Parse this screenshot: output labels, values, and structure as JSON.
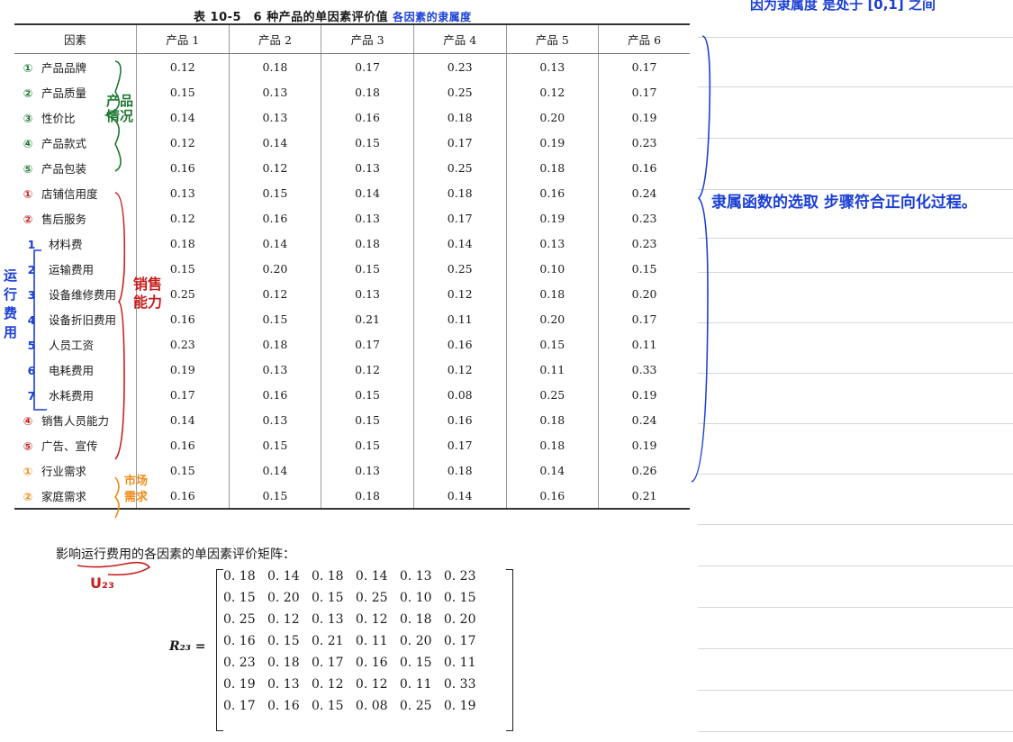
{
  "caption": "表 10-5　6 种产品的单因素评价值",
  "table": {
    "headers": [
      "因素",
      "产品 1",
      "产品 2",
      "产品 3",
      "产品 4",
      "产品 5",
      "产品 6"
    ],
    "rows": [
      {
        "factor": "产品品牌",
        "values": [
          "0.12",
          "0.18",
          "0.17",
          "0.23",
          "0.13",
          "0.17"
        ]
      },
      {
        "factor": "产品质量",
        "values": [
          "0.15",
          "0.13",
          "0.18",
          "0.25",
          "0.12",
          "0.17"
        ]
      },
      {
        "factor": "性价比",
        "values": [
          "0.14",
          "0.13",
          "0.16",
          "0.18",
          "0.20",
          "0.19"
        ]
      },
      {
        "factor": "产品款式",
        "values": [
          "0.12",
          "0.14",
          "0.15",
          "0.17",
          "0.19",
          "0.23"
        ]
      },
      {
        "factor": "产品包装",
        "values": [
          "0.16",
          "0.12",
          "0.13",
          "0.25",
          "0.18",
          "0.16"
        ]
      },
      {
        "factor": "店铺信用度",
        "values": [
          "0.13",
          "0.15",
          "0.14",
          "0.18",
          "0.16",
          "0.24"
        ]
      },
      {
        "factor": "售后服务",
        "values": [
          "0.12",
          "0.16",
          "0.13",
          "0.17",
          "0.19",
          "0.23"
        ]
      },
      {
        "factor": "材料费",
        "values": [
          "0.18",
          "0.14",
          "0.18",
          "0.14",
          "0.13",
          "0.23"
        ]
      },
      {
        "factor": "运输费用",
        "values": [
          "0.15",
          "0.20",
          "0.15",
          "0.25",
          "0.10",
          "0.15"
        ]
      },
      {
        "factor": "设备维修费用",
        "values": [
          "0.25",
          "0.12",
          "0.13",
          "0.12",
          "0.18",
          "0.20"
        ]
      },
      {
        "factor": "设备折旧费用",
        "values": [
          "0.16",
          "0.15",
          "0.21",
          "0.11",
          "0.20",
          "0.17"
        ]
      },
      {
        "factor": "人员工资",
        "values": [
          "0.23",
          "0.18",
          "0.17",
          "0.16",
          "0.15",
          "0.11"
        ]
      },
      {
        "factor": "电耗费用",
        "values": [
          "0.19",
          "0.13",
          "0.12",
          "0.12",
          "0.11",
          "0.33"
        ]
      },
      {
        "factor": "水耗费用",
        "values": [
          "0.17",
          "0.16",
          "0.15",
          "0.08",
          "0.25",
          "0.19"
        ]
      },
      {
        "factor": "销售人员能力",
        "values": [
          "0.14",
          "0.13",
          "0.15",
          "0.16",
          "0.18",
          "0.24"
        ]
      },
      {
        "factor": "广告、宣传",
        "values": [
          "0.16",
          "0.15",
          "0.15",
          "0.17",
          "0.18",
          "0.19"
        ]
      },
      {
        "factor": "行业需求",
        "values": [
          "0.15",
          "0.14",
          "0.13",
          "0.18",
          "0.14",
          "0.26"
        ]
      },
      {
        "factor": "家庭需求",
        "values": [
          "0.16",
          "0.15",
          "0.18",
          "0.14",
          "0.16",
          "0.21"
        ]
      }
    ]
  },
  "matrix_note": "影响运行费用的各因素的单因素评价矩阵：",
  "matrix_label": "R₂₃ =",
  "matrix_rows": [
    "0. 18   0. 14   0. 18   0. 14   0. 13   0. 23",
    "0. 15   0. 20   0. 15   0. 25   0. 10   0. 15",
    "0. 25   0. 12   0. 13   0. 12   0. 18   0. 20",
    "0. 16   0. 15   0. 21   0. 11   0. 20   0. 17",
    "0. 23   0. 18   0. 17   0. 16   0. 15   0. 11",
    "0. 19   0. 13   0. 12   0. 12   0. 11   0. 33",
    "0. 17   0. 16   0. 15   0. 08   0. 25   0. 19"
  ],
  "handwriting": {
    "caption_note": "各因素的隶属度",
    "top_right": "因为隶属度 是处于 [0,1] 之间",
    "right_note": "隶属函数的选取 步骤符合正向化过程。",
    "group_product": "产品情况",
    "group_sales": "销售能力",
    "group_running": "运行费用",
    "group_market": "市场需求",
    "symbol_u23": "U₂₃",
    "nums_green": [
      "①",
      "②",
      "③",
      "④",
      "⑤"
    ],
    "nums_red": [
      "①",
      "②",
      "③",
      "④",
      "⑤"
    ],
    "nums_orange": [
      "①",
      "②"
    ],
    "sub_nums": [
      "1",
      "2",
      "3",
      "4",
      "5",
      "6",
      "7"
    ]
  },
  "colors": {
    "blue": "#1b3fd6",
    "green": "#1f7a33",
    "red": "#c61f1f",
    "orange": "#f08c1a"
  }
}
